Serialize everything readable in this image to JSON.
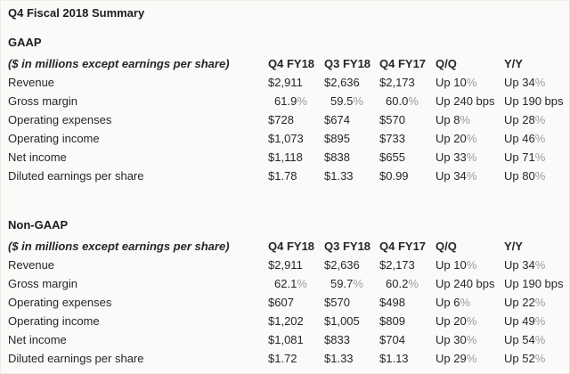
{
  "page": {
    "title": "Q4 Fiscal 2018 Summary"
  },
  "colors": {
    "background": "#fbfaf8",
    "text": "#262626",
    "percent_sign_muted": "#9b9b9b",
    "border": "#e3e1de"
  },
  "tables": [
    {
      "section": "GAAP",
      "note": "($ in millions except earnings per share)",
      "columns": [
        "Q4 FY18",
        "Q3 FY18",
        "Q4 FY17",
        "Q/Q",
        "Y/Y"
      ],
      "rows": [
        {
          "label": "Revenue",
          "values": [
            "$2,911",
            "$2,636",
            "$2,173",
            "Up 10%",
            "Up 34%"
          ]
        },
        {
          "label": "Gross margin",
          "values": [
            "61.9%",
            "59.5%",
            "60.0%",
            "Up 240 bps",
            "Up 190 bps"
          ],
          "indent": true
        },
        {
          "label": "Operating expenses",
          "values": [
            "$728",
            "$674",
            "$570",
            "Up 8%",
            "Up 28%"
          ]
        },
        {
          "label": "Operating income",
          "values": [
            "$1,073",
            "$895",
            "$733",
            "Up 20%",
            "Up 46%"
          ]
        },
        {
          "label": "Net income",
          "values": [
            "$1,118",
            "$838",
            "$655",
            "Up 33%",
            "Up 71%"
          ]
        },
        {
          "label": "Diluted earnings per share",
          "values": [
            "$1.78",
            "$1.33",
            "$0.99",
            "Up 34%",
            "Up 80%"
          ]
        }
      ]
    },
    {
      "section": "Non-GAAP",
      "note": "($ in millions except earnings per share)",
      "columns": [
        "Q4 FY18",
        "Q3 FY18",
        "Q4 FY17",
        "Q/Q",
        "Y/Y"
      ],
      "rows": [
        {
          "label": "Revenue",
          "values": [
            "$2,911",
            "$2,636",
            "$2,173",
            "Up 10%",
            "Up 34%"
          ]
        },
        {
          "label": "Gross margin",
          "values": [
            "62.1%",
            "59.7%",
            "60.2%",
            "Up 240 bps",
            "Up 190 bps"
          ],
          "indent": true
        },
        {
          "label": "Operating expenses",
          "values": [
            "$607",
            "$570",
            "$498",
            "Up 6%",
            "Up 22%"
          ]
        },
        {
          "label": "Operating income",
          "values": [
            "$1,202",
            "$1,005",
            "$809",
            "Up 20%",
            "Up 49%"
          ]
        },
        {
          "label": "Net income",
          "values": [
            "$1,081",
            "$833",
            "$704",
            "Up 30%",
            "Up 54%"
          ]
        },
        {
          "label": "Diluted earnings per share",
          "values": [
            "$1.72",
            "$1.33",
            "$1.13",
            "Up 29%",
            "Up 52%"
          ]
        }
      ]
    }
  ]
}
